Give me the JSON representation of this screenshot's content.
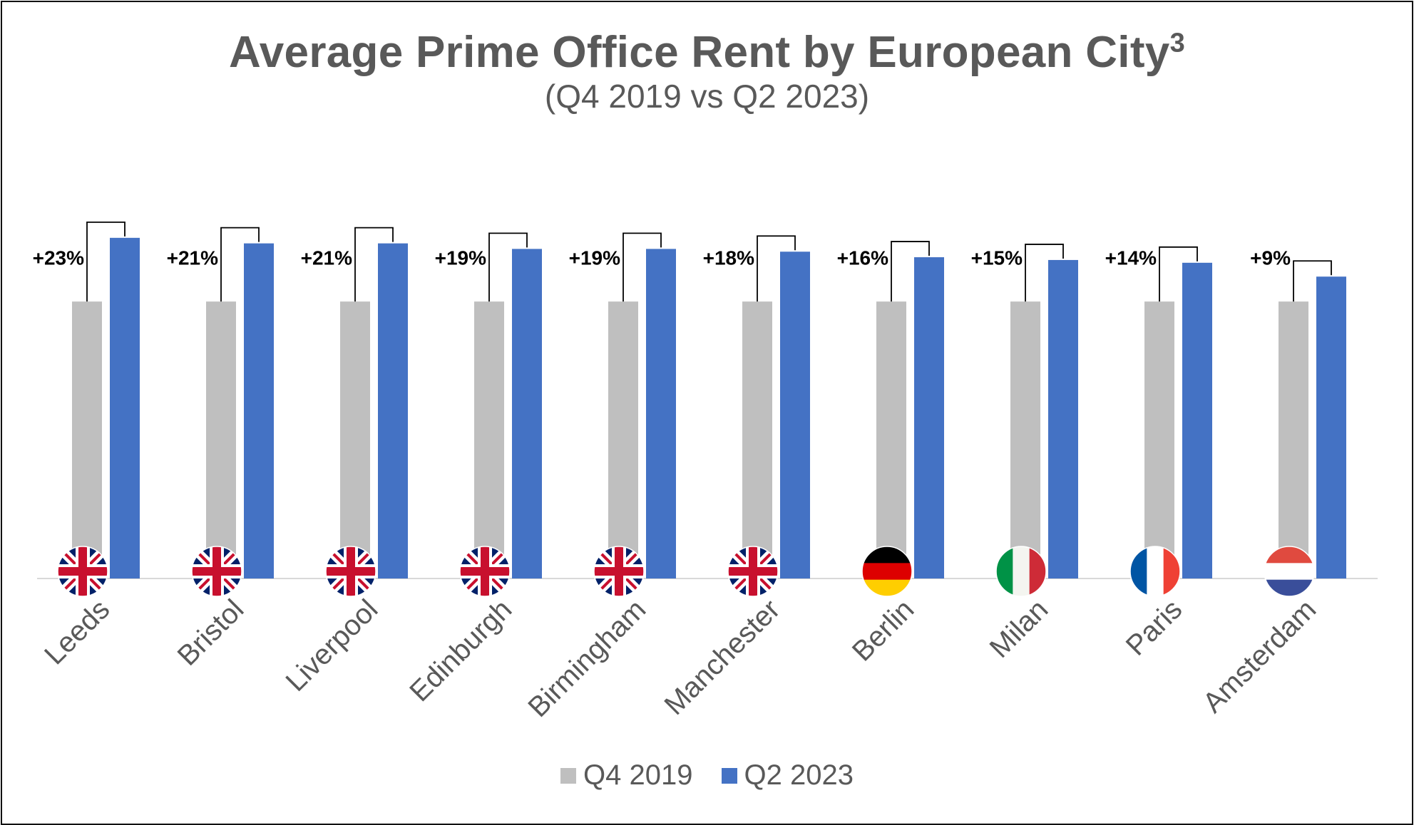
{
  "chart_data": {
    "type": "bar",
    "title": "Average Prime Office Rent by European City",
    "title_superscript": "3",
    "subtitle": "(Q4 2019 vs Q2 2023)",
    "categories": [
      "Leeds",
      "Bristol",
      "Liverpool",
      "Edinburgh",
      "Birmingham",
      "Manchester",
      "Berlin",
      "Milan",
      "Paris",
      "Amsterdam"
    ],
    "countries": [
      "UK",
      "UK",
      "UK",
      "UK",
      "UK",
      "UK",
      "Germany",
      "Italy",
      "France",
      "Netherlands"
    ],
    "series": [
      {
        "name": "Q4 2019",
        "color": "#bfbfbf",
        "values": [
          100,
          100,
          100,
          100,
          100,
          100,
          100,
          100,
          100,
          100
        ]
      },
      {
        "name": "Q2 2023",
        "color": "#4472c4",
        "values": [
          123,
          121,
          121,
          119,
          119,
          118,
          116,
          115,
          114,
          109
        ]
      }
    ],
    "change_labels": [
      "+23%",
      "+21%",
      "+21%",
      "+19%",
      "+19%",
      "+18%",
      "+16%",
      "+15%",
      "+14%",
      "+9%"
    ],
    "ylim": [
      0,
      160
    ],
    "grid": false,
    "legend_position": "bottom",
    "xlabel": "",
    "ylabel": ""
  }
}
